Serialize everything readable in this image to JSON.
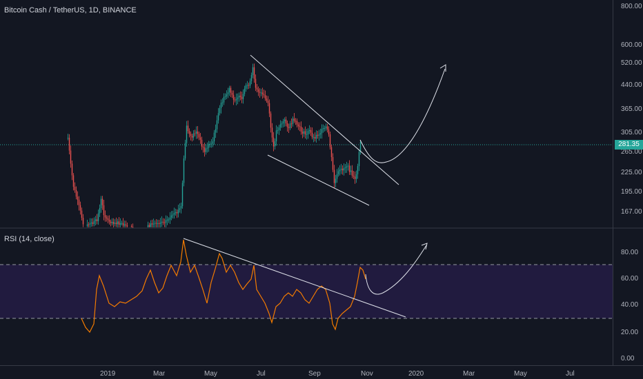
{
  "header": {
    "symbol_title": "Bitcoin Cash / TetherUS, 1D, BINANCE"
  },
  "price_axis": {
    "labels": [
      "800.00",
      "600.00",
      "520.00",
      "440.00",
      "365.00",
      "305.00",
      "265.00",
      "225.00",
      "195.00",
      "167.00"
    ]
  },
  "last_price": {
    "value": "281.35",
    "color": "#26a69a"
  },
  "rsi": {
    "title": "RSI (14, close)",
    "axis_labels": [
      "80.00",
      "60.00",
      "40.00",
      "20.00",
      "0.00"
    ],
    "band_color": "#2a1f4d",
    "line_color": "#f57c00"
  },
  "time_axis": {
    "labels": [
      "2019",
      "Mar",
      "May",
      "Jul",
      "Sep",
      "Nov",
      "2020",
      "Mar",
      "May",
      "Jul"
    ]
  },
  "colors": {
    "up": "#26a69a",
    "down": "#ef5350",
    "background": "#131722",
    "grid_divider": "#363a45"
  }
}
